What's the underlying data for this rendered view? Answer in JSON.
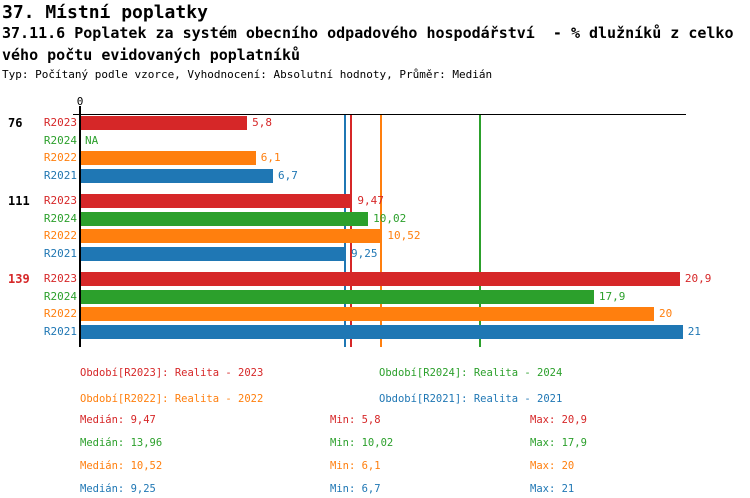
{
  "header": {
    "line1": "37. Místní poplatky",
    "line2": "37.11.6 Poplatek za systém obecního odpadového hospodářství  - % dlužníků z celko",
    "line3": "vého počtu evidovaných poplatníků",
    "meta": "Typ: Počítaný podle vzorce, Vyhodnocení: Absolutní hodnoty, Průměr: Medián"
  },
  "colors": {
    "r2023": "#d62728",
    "r2024": "#2ca02c",
    "r2022": "#ff7f0e",
    "r2021": "#1f77b4",
    "axis": "#000000",
    "highlight_group": "#d62728"
  },
  "chart_data": {
    "type": "bar",
    "orientation": "horizontal",
    "title": "37. Místní poplatky",
    "subtitle": "37.11.6 Poplatek za systém obecního odpadového hospodářství  - % dlužníků z celkového počtu evidovaných poplatníků",
    "xlabel": "",
    "ylabel": "",
    "xlim": [
      0,
      21.15
    ],
    "zero_label": "0",
    "grid": false,
    "legend_position": "bottom",
    "groups": [
      {
        "label": "76",
        "label_color": "#000000",
        "bars": [
          {
            "series": "R2023",
            "value": 5.8,
            "label": "5,8",
            "color": "#d62728"
          },
          {
            "series": "R2024",
            "value": null,
            "label": "NA",
            "color": "#2ca02c"
          },
          {
            "series": "R2022",
            "value": 6.1,
            "label": "6,1",
            "color": "#ff7f0e"
          },
          {
            "series": "R2021",
            "value": 6.7,
            "label": "6,7",
            "color": "#1f77b4"
          }
        ]
      },
      {
        "label": "111",
        "label_color": "#000000",
        "bars": [
          {
            "series": "R2023",
            "value": 9.47,
            "label": "9,47",
            "color": "#d62728"
          },
          {
            "series": "R2024",
            "value": 10.02,
            "label": "10,02",
            "color": "#2ca02c"
          },
          {
            "series": "R2022",
            "value": 10.52,
            "label": "10,52",
            "color": "#ff7f0e"
          },
          {
            "series": "R2021",
            "value": 9.25,
            "label": "9,25",
            "color": "#1f77b4"
          }
        ]
      },
      {
        "label": "139",
        "label_color": "#d62728",
        "bars": [
          {
            "series": "R2023",
            "value": 20.9,
            "label": "20,9",
            "color": "#d62728"
          },
          {
            "series": "R2024",
            "value": 17.9,
            "label": "17,9",
            "color": "#2ca02c"
          },
          {
            "series": "R2022",
            "value": 20,
            "label": "20",
            "color": "#ff7f0e"
          },
          {
            "series": "R2021",
            "value": 21,
            "label": "21",
            "color": "#1f77b4"
          }
        ]
      }
    ],
    "median_lines": [
      {
        "series": "R2021",
        "value": 9.25,
        "color": "#1f77b4"
      },
      {
        "series": "R2023",
        "value": 9.47,
        "color": "#d62728"
      },
      {
        "series": "R2022",
        "value": 10.52,
        "color": "#ff7f0e"
      },
      {
        "series": "R2024",
        "value": 13.96,
        "color": "#2ca02c"
      }
    ]
  },
  "legend": {
    "items": [
      {
        "text": "Období[R2023]: Realita - 2023",
        "color": "#d62728",
        "row": 0,
        "col": 0
      },
      {
        "text": "Období[R2024]: Realita - 2024",
        "color": "#2ca02c",
        "row": 0,
        "col": 1
      },
      {
        "text": "Období[R2022]: Realita - 2022",
        "color": "#ff7f0e",
        "row": 1,
        "col": 0
      },
      {
        "text": "Období[R2021]: Realita - 2021",
        "color": "#1f77b4",
        "row": 1,
        "col": 1
      }
    ]
  },
  "stats": {
    "rows": [
      {
        "median": "Medián: 9,47",
        "min": "Min: 5,8",
        "max": "Max: 20,9",
        "color": "#d62728"
      },
      {
        "median": "Medián: 13,96",
        "min": "Min: 10,02",
        "max": "Max: 17,9",
        "color": "#2ca02c"
      },
      {
        "median": "Medián: 10,52",
        "min": "Min: 6,1",
        "max": "Max: 20",
        "color": "#ff7f0e"
      },
      {
        "median": "Medián: 9,25",
        "min": "Min: 6,7",
        "max": "Max: 21",
        "color": "#1f77b4"
      }
    ]
  }
}
